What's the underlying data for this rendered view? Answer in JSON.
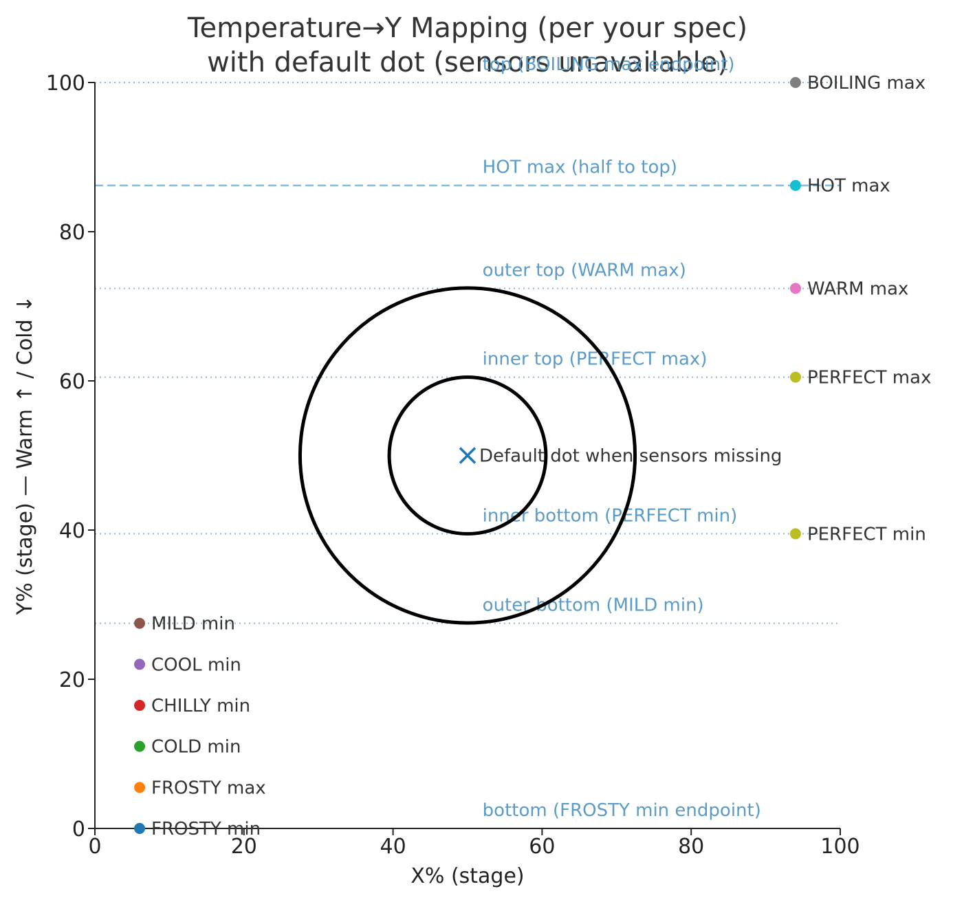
{
  "chart_data": {
    "type": "scatter",
    "title": [
      "Temperature→Y Mapping (per your spec)",
      "with default dot (sensors unavailable)"
    ],
    "xlabel": "X% (stage)",
    "ylabel": "Y% (stage)  —  Warm ↑  /  Cold ↓",
    "xlim": [
      0,
      100
    ],
    "ylim": [
      0,
      100
    ],
    "xticks": [
      0,
      20,
      40,
      60,
      80,
      100
    ],
    "yticks": [
      0,
      20,
      40,
      60,
      80,
      100
    ],
    "grid": false,
    "reference_color": "#5a9bc7",
    "reference_lines": [
      {
        "y": 100,
        "label": "top (BOILING max endpoint)",
        "style": "dotted"
      },
      {
        "y": 86.2,
        "label": "HOT max (half to top)",
        "style": "dashed"
      },
      {
        "y": 72.4,
        "label": "outer top (WARM max)",
        "style": "dotted"
      },
      {
        "y": 60.5,
        "label": "inner top (PERFECT max)",
        "style": "dotted"
      },
      {
        "y": 39.5,
        "label": "inner bottom (PERFECT min)",
        "style": "dotted"
      },
      {
        "y": 27.5,
        "label": "outer bottom (MILD min)",
        "style": "dotted"
      },
      {
        "y": 0,
        "label": "bottom (FROSTY min endpoint)",
        "style": "none"
      }
    ],
    "circles": [
      {
        "name": "outer",
        "cx": 50,
        "cy": 50,
        "ry": 22.45
      },
      {
        "name": "inner",
        "cx": 50,
        "cy": 50,
        "ry": 10.5
      }
    ],
    "default_dot": {
      "x": 50,
      "y": 50,
      "label": "Default dot when sensors missing",
      "color": "#1f77b4"
    },
    "markers": [
      {
        "label": "BOILING max",
        "x": 94,
        "y": 100,
        "color": "#7f7f7f"
      },
      {
        "label": "HOT max",
        "x": 94,
        "y": 86.2,
        "color": "#17becf"
      },
      {
        "label": "WARM max",
        "x": 94,
        "y": 72.4,
        "color": "#e377c2"
      },
      {
        "label": "PERFECT max",
        "x": 94,
        "y": 60.5,
        "color": "#bcbd22"
      },
      {
        "label": "PERFECT min",
        "x": 94,
        "y": 39.5,
        "color": "#bcbd22"
      },
      {
        "label": "MILD min",
        "x": 6,
        "y": 27.5,
        "color": "#8c564b"
      },
      {
        "label": "COOL min",
        "x": 6,
        "y": 22,
        "color": "#9467bd"
      },
      {
        "label": "CHILLY min",
        "x": 6,
        "y": 16.5,
        "color": "#d62728"
      },
      {
        "label": "COLD min",
        "x": 6,
        "y": 11,
        "color": "#2ca02c"
      },
      {
        "label": "FROSTY max",
        "x": 6,
        "y": 5.5,
        "color": "#ff7f0e"
      },
      {
        "label": "FROSTY min",
        "x": 6,
        "y": 0,
        "color": "#1f77b4"
      }
    ]
  }
}
